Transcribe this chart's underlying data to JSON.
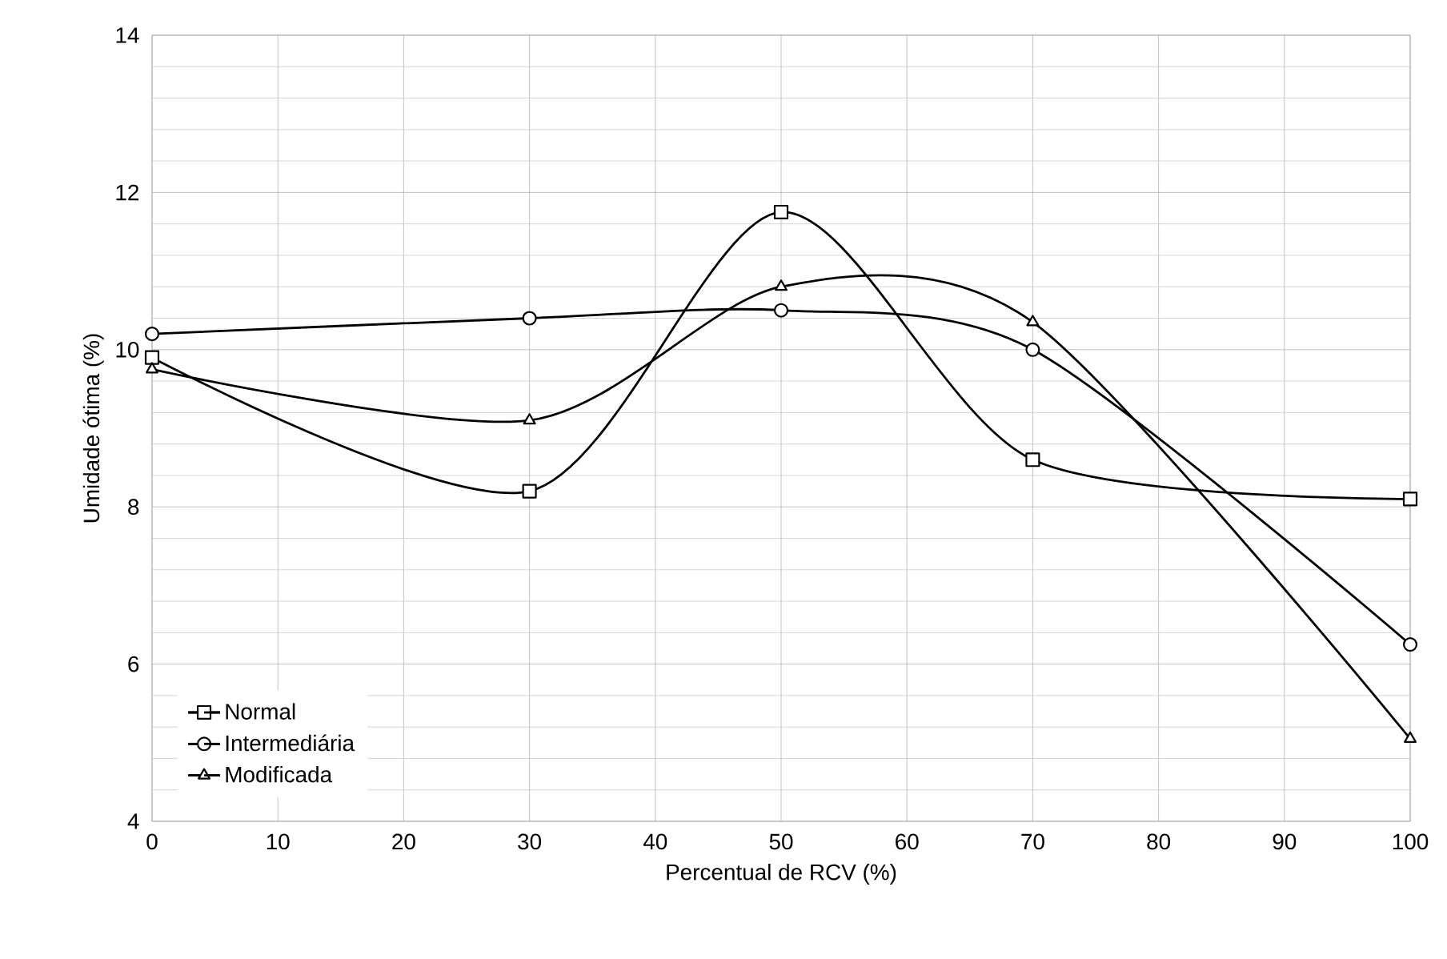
{
  "chart_data": {
    "type": "line",
    "xlabel": "Percentual de RCV (%)",
    "ylabel": "Umidade ótima (%)",
    "x": [
      0,
      30,
      50,
      70,
      100
    ],
    "series": [
      {
        "name": "Normal",
        "color": "#000000",
        "marker": "square",
        "values": [
          9.9,
          8.2,
          11.75,
          8.6,
          8.1
        ]
      },
      {
        "name": "Intermediária",
        "color": "#000000",
        "marker": "circle",
        "values": [
          10.2,
          10.4,
          10.5,
          10.0,
          6.25
        ]
      },
      {
        "name": "Modificada",
        "color": "#000000",
        "marker": "triangle",
        "values": [
          9.75,
          9.1,
          10.8,
          10.35,
          5.05
        ]
      }
    ],
    "xlim": [
      0,
      100
    ],
    "xticks": [
      0,
      10,
      20,
      30,
      40,
      50,
      60,
      70,
      80,
      90,
      100
    ],
    "ylim": [
      4,
      14
    ],
    "yticks": [
      4,
      6,
      8,
      10,
      12,
      14
    ],
    "grid": true,
    "legend": "bottom left",
    "line_style": "solid"
  }
}
